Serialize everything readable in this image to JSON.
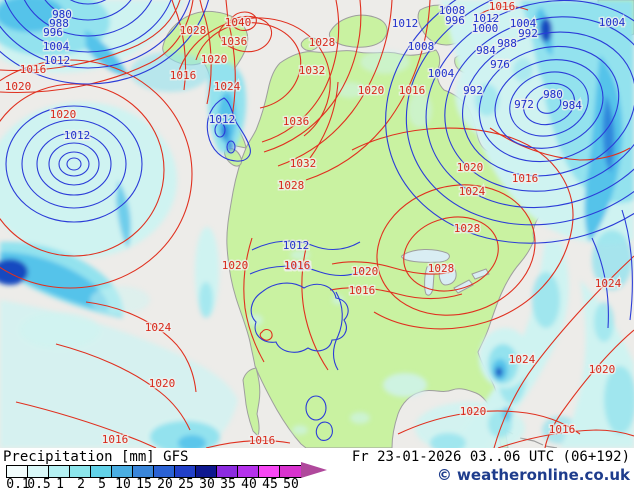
{
  "legend": {
    "title": "Precipitation [mm] GFS",
    "datetime": "Fr 23-01-2026 03..06 UTC (06+192)",
    "copyright": "© weatheronline.co.uk",
    "scale": {
      "values": [
        "0.1",
        "0.5",
        "1",
        "2",
        "5",
        "10",
        "15",
        "20",
        "25",
        "30",
        "35",
        "40",
        "45",
        "50"
      ],
      "colors": [
        "#F2FDFD",
        "#D9F8F8",
        "#B4F0F2",
        "#8CE6EC",
        "#62D2E8",
        "#4AAEE2",
        "#3A86DA",
        "#2B62D4",
        "#2240C8",
        "#0E188F",
        "#8C2BE0",
        "#B531EC",
        "#F747F4",
        "#D832CE"
      ],
      "arrow_color": "#B0499C"
    }
  },
  "map": {
    "colors": {
      "ocean": "#EDECE9",
      "land": "#C9F2A1",
      "lake": "#D9EDF3",
      "border": "#9E9E9E",
      "red": "#E0301F",
      "blue": "#2B3CD8",
      "lred": "#D8281A",
      "lblue": "#2030CC",
      "p_light": "#CFF3F1",
      "p_mid": "#93E2EE",
      "p_strong": "#55C3EA",
      "p_heavy": "#2E86DC",
      "p_dark": "#1248C0"
    },
    "labels": [
      [
        "980",
        62,
        15,
        "b"
      ],
      [
        "988",
        59,
        24,
        "b"
      ],
      [
        "996",
        53,
        33,
        "b"
      ],
      [
        "1004",
        56,
        47,
        "b"
      ],
      [
        "1012",
        57,
        61,
        "b"
      ],
      [
        "1012",
        77,
        136,
        "b"
      ],
      [
        "1012",
        222,
        120,
        "b"
      ],
      [
        "1012",
        405,
        24,
        "b"
      ],
      [
        "1008",
        452,
        11,
        "b"
      ],
      [
        "996",
        455,
        21,
        "b"
      ],
      [
        "1012",
        486,
        19,
        "b"
      ],
      [
        "1000",
        485,
        29,
        "b"
      ],
      [
        "1004",
        523,
        24,
        "b"
      ],
      [
        "992",
        528,
        34,
        "b"
      ],
      [
        "988",
        507,
        44,
        "b"
      ],
      [
        "984",
        486,
        51,
        "b"
      ],
      [
        "1008",
        421,
        47,
        "b"
      ],
      [
        "976",
        500,
        65,
        "b"
      ],
      [
        "1004",
        441,
        74,
        "b"
      ],
      [
        "992",
        473,
        91,
        "b"
      ],
      [
        "972",
        524,
        105,
        "b"
      ],
      [
        "980",
        553,
        95,
        "b"
      ],
      [
        "984",
        572,
        106,
        "b"
      ],
      [
        "1004",
        612,
        23,
        "b"
      ],
      [
        "1012",
        296,
        246,
        "b"
      ],
      [
        "1016",
        298,
        267,
        "b"
      ],
      [
        "1016",
        33,
        70,
        "r"
      ],
      [
        "1020",
        18,
        87,
        "r"
      ],
      [
        "1020",
        63,
        115,
        "r"
      ],
      [
        "1028",
        193,
        31,
        "r"
      ],
      [
        "1040",
        238,
        23,
        "r"
      ],
      [
        "1036",
        234,
        42,
        "r"
      ],
      [
        "1020",
        214,
        60,
        "r"
      ],
      [
        "1016",
        183,
        76,
        "r"
      ],
      [
        "1024",
        227,
        87,
        "r"
      ],
      [
        "1028",
        322,
        43,
        "r"
      ],
      [
        "1032",
        312,
        71,
        "r"
      ],
      [
        "1016",
        502,
        7,
        "r"
      ],
      [
        "1020",
        371,
        91,
        "r"
      ],
      [
        "1016",
        412,
        91,
        "r"
      ],
      [
        "1036",
        296,
        122,
        "r"
      ],
      [
        "1032",
        303,
        164,
        "r"
      ],
      [
        "1028",
        291,
        186,
        "r"
      ],
      [
        "1020",
        470,
        168,
        "r"
      ],
      [
        "1016",
        525,
        179,
        "r"
      ],
      [
        "1024",
        472,
        192,
        "r"
      ],
      [
        "1028",
        467,
        229,
        "r"
      ],
      [
        "1028",
        441,
        269,
        "r"
      ],
      [
        "1020",
        235,
        266,
        "r"
      ],
      [
        "1016",
        297,
        266,
        "r"
      ],
      [
        "1020",
        365,
        272,
        "r"
      ],
      [
        "1016",
        362,
        291,
        "r"
      ],
      [
        "1024",
        158,
        328,
        "r"
      ],
      [
        "1020",
        162,
        384,
        "r"
      ],
      [
        "1016",
        115,
        440,
        "r"
      ],
      [
        "1016",
        262,
        441,
        "r"
      ],
      [
        "1024",
        522,
        360,
        "r"
      ],
      [
        "1024",
        608,
        284,
        "r"
      ],
      [
        "1020",
        602,
        370,
        "r"
      ],
      [
        "1020",
        473,
        412,
        "r"
      ],
      [
        "1016",
        562,
        430,
        "r"
      ]
    ]
  }
}
